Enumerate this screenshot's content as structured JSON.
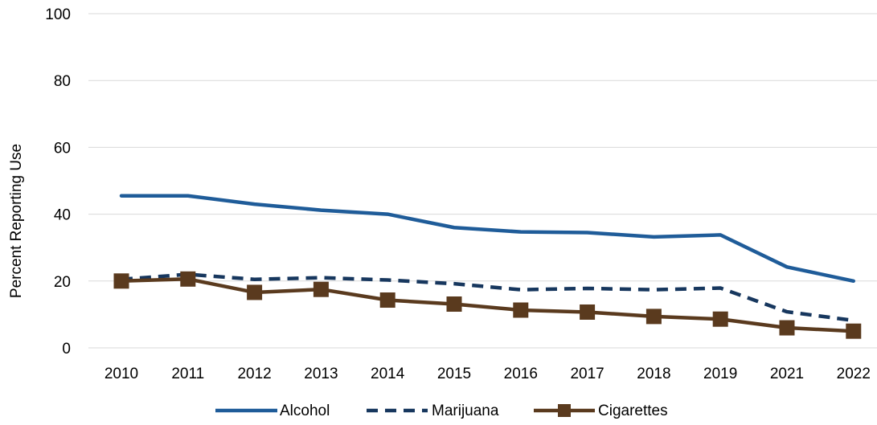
{
  "chart_data": {
    "type": "line",
    "title": "",
    "xlabel": "",
    "ylabel": "Percent Reporting Use",
    "ylim": [
      0,
      100
    ],
    "yticks": [
      0,
      20,
      40,
      60,
      80,
      100
    ],
    "grid": "horizontal",
    "legend_position": "bottom",
    "categories": [
      "2010",
      "2011",
      "2012",
      "2013",
      "2014",
      "2015",
      "2016",
      "2017",
      "2018",
      "2019",
      "2021",
      "2022"
    ],
    "series": [
      {
        "name": "Alcohol",
        "color": "#1f5c99",
        "style": "solid",
        "marker": "none",
        "values": [
          45.5,
          45.5,
          43.0,
          41.2,
          40.0,
          36.0,
          34.7,
          34.5,
          33.2,
          33.8,
          24.2,
          20.0
        ]
      },
      {
        "name": "Marijuana",
        "color": "#17375e",
        "style": "dashed",
        "marker": "none",
        "values": [
          20.5,
          22.0,
          20.5,
          21.0,
          20.3,
          19.2,
          17.4,
          17.8,
          17.4,
          17.9,
          10.8,
          8.2
        ]
      },
      {
        "name": "Cigarettes",
        "color": "#5a3a1e",
        "style": "solid",
        "marker": "square",
        "values": [
          20.0,
          20.6,
          16.6,
          17.5,
          14.3,
          13.1,
          11.3,
          10.7,
          9.4,
          8.6,
          6.0,
          5.0
        ]
      }
    ]
  }
}
